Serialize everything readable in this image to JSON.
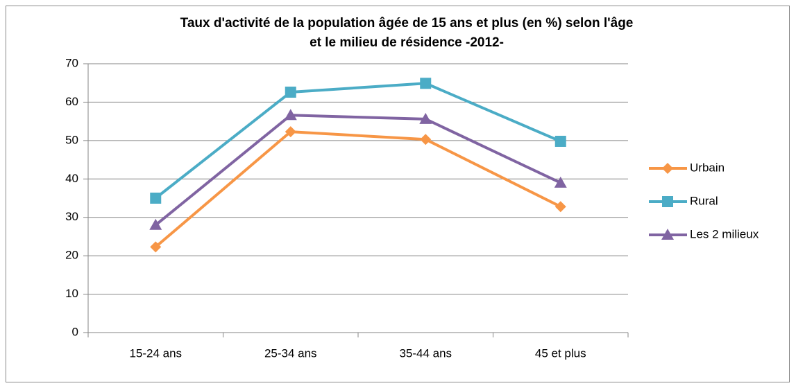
{
  "chart_data": {
    "type": "line",
    "title": [
      "Taux d'activité  de la population âgée de 15 ans et plus (en %) selon l'âge",
      "et le milieu de résidence -2012-"
    ],
    "categories": [
      "15-24 ans",
      "25-34 ans",
      "35-44 ans",
      "45 et plus"
    ],
    "series": [
      {
        "name": "Urbain",
        "color": "#f79646",
        "marker": "diamond",
        "values": [
          22.3,
          52.3,
          50.3,
          32.8
        ]
      },
      {
        "name": "Rural",
        "color": "#4bacc6",
        "marker": "square",
        "values": [
          35,
          62.6,
          64.9,
          49.8
        ]
      },
      {
        "name": "Les 2 milieux",
        "color": "#8064a2",
        "marker": "triangle",
        "values": [
          28,
          56.6,
          55.6,
          39
        ]
      }
    ],
    "ylim": [
      0,
      70
    ],
    "yticks": [
      0,
      10,
      20,
      30,
      40,
      50,
      60,
      70
    ],
    "grid": true,
    "legend": "right"
  }
}
